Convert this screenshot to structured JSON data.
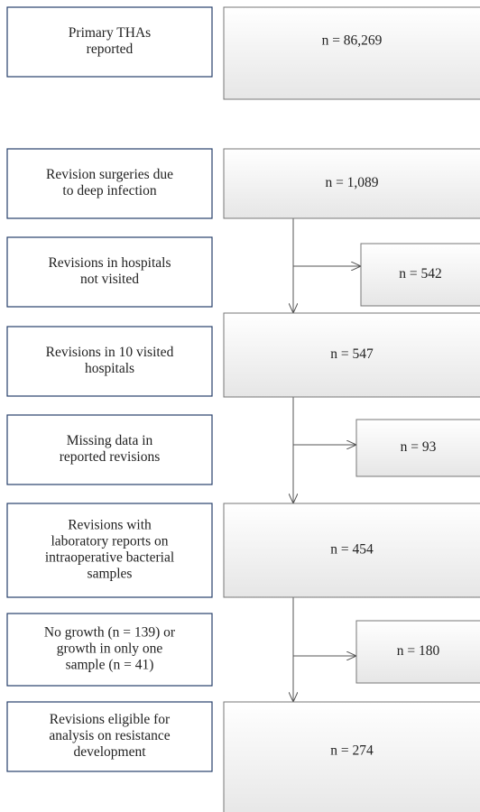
{
  "labels": [
    {
      "lines": [
        "Primary THAs",
        "reported"
      ]
    },
    {
      "lines": [
        "Revision surgeries due",
        "to deep infection"
      ]
    },
    {
      "lines": [
        "Revisions in hospitals",
        "not visited"
      ]
    },
    {
      "lines": [
        "Revisions in 10 visited",
        "hospitals"
      ]
    },
    {
      "lines": [
        "Missing data in",
        "reported revisions"
      ]
    },
    {
      "lines": [
        "Revisions with",
        "laboratory reports on",
        "intraoperative bacterial",
        "samples"
      ]
    },
    {
      "lines": [
        "No growth (n = 139) or",
        "growth in only one",
        "sample (n = 41)"
      ]
    },
    {
      "lines": [
        "Revisions eligible for",
        "analysis on resistance",
        "development"
      ]
    }
  ],
  "counts": [
    "n = 86,269",
    "n = 1,089",
    "n = 542",
    "n = 547",
    "n = 93",
    "n = 454",
    "n = 180",
    "n = 274"
  ]
}
